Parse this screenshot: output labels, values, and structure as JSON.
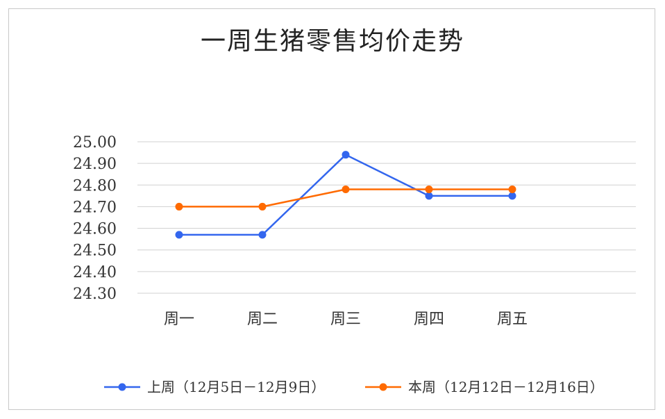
{
  "chart_data": {
    "type": "line",
    "title": "一周生猪零售均价走势",
    "categories": [
      "周一",
      "周二",
      "周三",
      "周四",
      "周五"
    ],
    "ylim": [
      24.3,
      25.0
    ],
    "yticks": [
      "25.00",
      "24.90",
      "24.80",
      "24.70",
      "24.60",
      "24.50",
      "24.40",
      "24.30"
    ],
    "grid": true,
    "legend_position": "bottom",
    "series": [
      {
        "name": "上周（12月5日－12月9日）",
        "color": "#3366ee",
        "values": [
          24.57,
          24.57,
          24.94,
          24.75,
          24.75
        ]
      },
      {
        "name": "本周（12月12日－12月16日）",
        "color": "#ff6a00",
        "values": [
          24.7,
          24.7,
          24.78,
          24.78,
          24.78
        ]
      }
    ]
  }
}
